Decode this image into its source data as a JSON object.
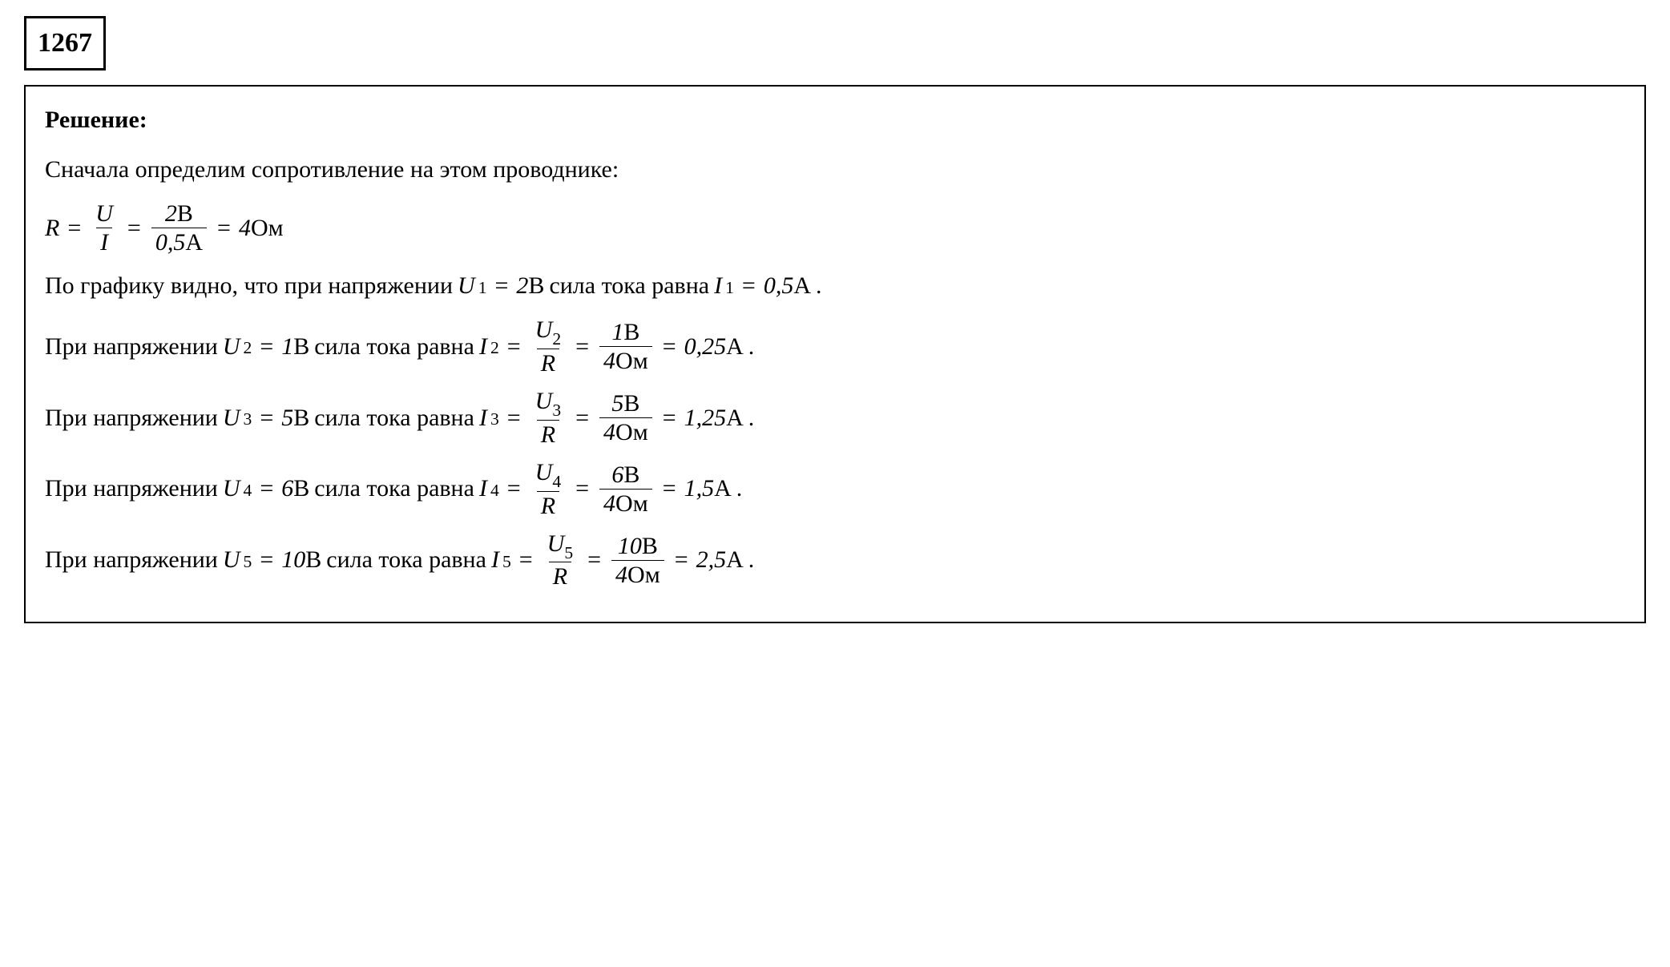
{
  "problem_number": "1267",
  "solution_title": "Решение:",
  "text_parts": {
    "intro": "Сначала определим сопротивление на этом проводнике:",
    "graph_line_a": "По графику видно, что при напряжении",
    "graph_line_b": "сила тока равна",
    "for_voltage": "При напряжении",
    "current_is": "сила тока равна",
    "period": "."
  },
  "resistance_calc": {
    "R": "R",
    "U": "U",
    "I": "I",
    "U_val": "2",
    "U_unit": "В",
    "I_val": "0,5",
    "I_unit": "А",
    "result": "4",
    "result_unit": "Ом"
  },
  "cases": [
    {
      "idx": "1",
      "U_val": "2",
      "I_val": "0,5",
      "show_calc": false
    },
    {
      "idx": "2",
      "U_val": "1",
      "I_val": "0,25",
      "R_val": "4",
      "num_val": "1",
      "show_calc": true
    },
    {
      "idx": "3",
      "U_val": "5",
      "I_val": "1,25",
      "R_val": "4",
      "num_val": "5",
      "show_calc": true
    },
    {
      "idx": "4",
      "U_val": "6",
      "I_val": "1,5",
      "R_val": "4",
      "num_val": "6",
      "show_calc": true
    },
    {
      "idx": "5",
      "U_val": "10",
      "I_val": "2,5",
      "R_val": "4",
      "num_val": "10",
      "show_calc": true
    }
  ],
  "units": {
    "V": "В",
    "A": "А",
    "Ohm": "Ом"
  },
  "symbols": {
    "U": "U",
    "I": "I",
    "R": "R"
  },
  "styling": {
    "font_family": "Times New Roman",
    "body_fontsize": 30,
    "title_fontsize": 30,
    "number_fontsize": 34,
    "text_color": "#000000",
    "background_color": "#ffffff",
    "border_color": "#000000",
    "number_border_width": 3,
    "box_border_width": 2
  }
}
